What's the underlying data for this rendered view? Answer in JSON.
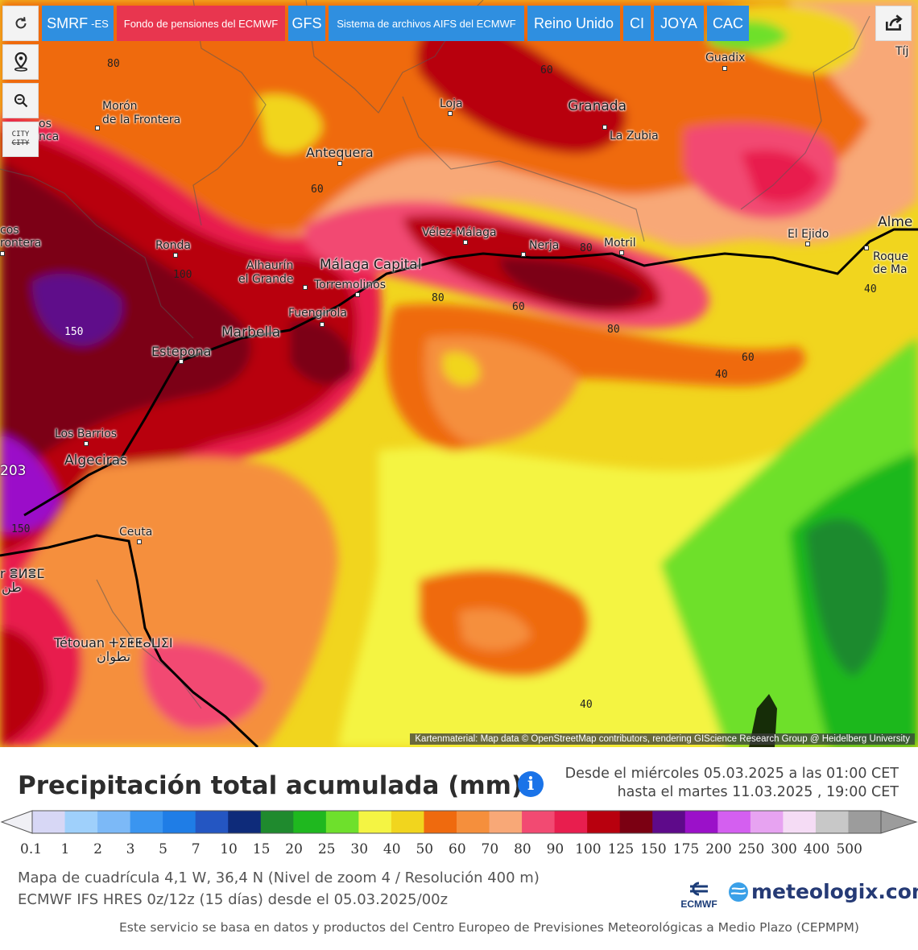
{
  "toolbar": {
    "tabs": [
      {
        "label": "SMRF",
        "suffix": "-ES"
      },
      {
        "label": "Fondo de pensiones del ECMWF"
      },
      {
        "label": "GFS"
      },
      {
        "label": "Sistema de archivos AIFS del ECMWF"
      },
      {
        "label": "Reino Unido"
      },
      {
        "label": "CI"
      },
      {
        "label": "JOYA"
      },
      {
        "label": "CAC"
      }
    ],
    "city_label": "CITY",
    "tools": [
      "refresh-icon",
      "location-pin-icon",
      "zoom-icon",
      "city-toggle-icon",
      "share-icon"
    ]
  },
  "map": {
    "places": [
      {
        "name": "Guadix"
      },
      {
        "name": "Loja"
      },
      {
        "name": "Granada"
      },
      {
        "name": "La Zubia"
      },
      {
        "name": "Morón"
      },
      {
        "name": "de la Frontera"
      },
      {
        "name": "Antequera"
      },
      {
        "name": "Ronda"
      },
      {
        "name": "Vélez-Málaga"
      },
      {
        "name": "Nerja"
      },
      {
        "name": "Motril"
      },
      {
        "name": "El Ejido"
      },
      {
        "name": "Alme"
      },
      {
        "name": "Roque"
      },
      {
        "name": "de Ma"
      },
      {
        "name": "Alhaurín"
      },
      {
        "name": "el Grande"
      },
      {
        "name": "Málaga Capital"
      },
      {
        "name": "Torremolinos"
      },
      {
        "name": "Fuengirola"
      },
      {
        "name": "Marbella"
      },
      {
        "name": "Estepona"
      },
      {
        "name": "Los Barrios"
      },
      {
        "name": "Algeciras"
      },
      {
        "name": "Ceuta"
      },
      {
        "name": "Tétouan ⵜⵉⵟⵟⴰⵡⵉⵏ"
      },
      {
        "name": "تطوان"
      },
      {
        "name": "r ⴻⵍⴻⵎ"
      },
      {
        "name": "طن"
      },
      {
        "name": "cos"
      },
      {
        "name": "rontera"
      },
      {
        "name": "os"
      },
      {
        "name": "nca"
      },
      {
        "name": "Tíj"
      },
      {
        "name": "203"
      }
    ],
    "isolines": [
      "80",
      "60",
      "60",
      "80",
      "100",
      "80",
      "60",
      "80",
      "60",
      "40",
      "40",
      "150",
      "150",
      "40"
    ],
    "attribution": "Kartenmaterial: Map data © OpenStreetMap contributors, rendering GIScience Research Group @ Heidelberg University"
  },
  "legend": {
    "title": "Precipitación total acumulada (mm)",
    "date_from": "Desde el miércoles 05.03.2025 a  las 01:00  CET",
    "date_to": "hasta el martes 11.03.2025 ,  19:00  CET",
    "scale_colors": [
      "#d7d7f5",
      "#9fd0fb",
      "#7cb9f7",
      "#3a95f0",
      "#1f7de6",
      "#2456c2",
      "#0e2b7a",
      "#1f8a2e",
      "#1fb81f",
      "#6ee02c",
      "#f4f443",
      "#f1d51e",
      "#ef6a0e",
      "#f58f3c",
      "#f8a877",
      "#f24a72",
      "#e81e4e",
      "#b8000e",
      "#7b0012",
      "#5e0a8a",
      "#9b11c9",
      "#d45ff0",
      "#e7a3f1",
      "#f5dcf5",
      "#c8c8c8",
      "#9c9c9c"
    ],
    "scale_ticks": [
      "0.1",
      "1",
      "2",
      "3",
      "5",
      "7",
      "10",
      "15",
      "20",
      "25",
      "30",
      "40",
      "50",
      "60",
      "70",
      "80",
      "90",
      "100",
      "125",
      "150",
      "175",
      "200",
      "250",
      "300",
      "400",
      "500"
    ],
    "grid_info": "Mapa de cuadrícula 4,1 W, 36,4 N  (Nivel de zoom 4 / Resolución 400 m)",
    "model_info": "ECMWF IFS HRES 0z/12z  (15 días)  desde el 05.03.2025/00z",
    "ecmwf_logo": "ECMWF",
    "brand": "meteologix.com",
    "footer": "Este servicio se basa en datos y productos del Centro Europeo de Previsiones Meteorológicas a Medio Plazo  (CEPMPM)"
  }
}
